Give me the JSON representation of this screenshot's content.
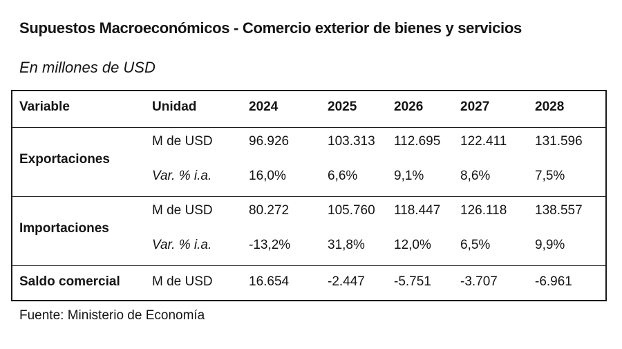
{
  "title": "Supuestos Macroeconómicos - Comercio exterior de bienes y servicios",
  "subtitle": "En millones de USD",
  "table": {
    "headers": [
      "Variable",
      "Unidad",
      "2024",
      "2025",
      "2026",
      "2027",
      "2028"
    ],
    "groups": [
      {
        "variable": "Exportaciones",
        "rows": [
          {
            "unit": "M de USD",
            "values": [
              "96.926",
              "103.313",
              "112.695",
              "122.411",
              "131.596"
            ]
          },
          {
            "unit": "Var. % i.a.",
            "values": [
              "16,0%",
              "6,6%",
              "9,1%",
              "8,6%",
              "7,5%"
            ]
          }
        ]
      },
      {
        "variable": "Importaciones",
        "rows": [
          {
            "unit": "M de USD",
            "values": [
              "80.272",
              "105.760",
              "118.447",
              "126.118",
              "138.557"
            ]
          },
          {
            "unit": "Var. % i.a.",
            "values": [
              "-13,2%",
              "31,8%",
              "12,0%",
              "6,5%",
              "9,9%"
            ]
          }
        ]
      },
      {
        "variable": "Saldo comercial",
        "rows": [
          {
            "unit": "M de USD",
            "values": [
              "16.654",
              "-2.447",
              "-5.751",
              "-3.707",
              "-6.961"
            ]
          }
        ]
      }
    ]
  },
  "source": "Fuente: Ministerio de Economía"
}
